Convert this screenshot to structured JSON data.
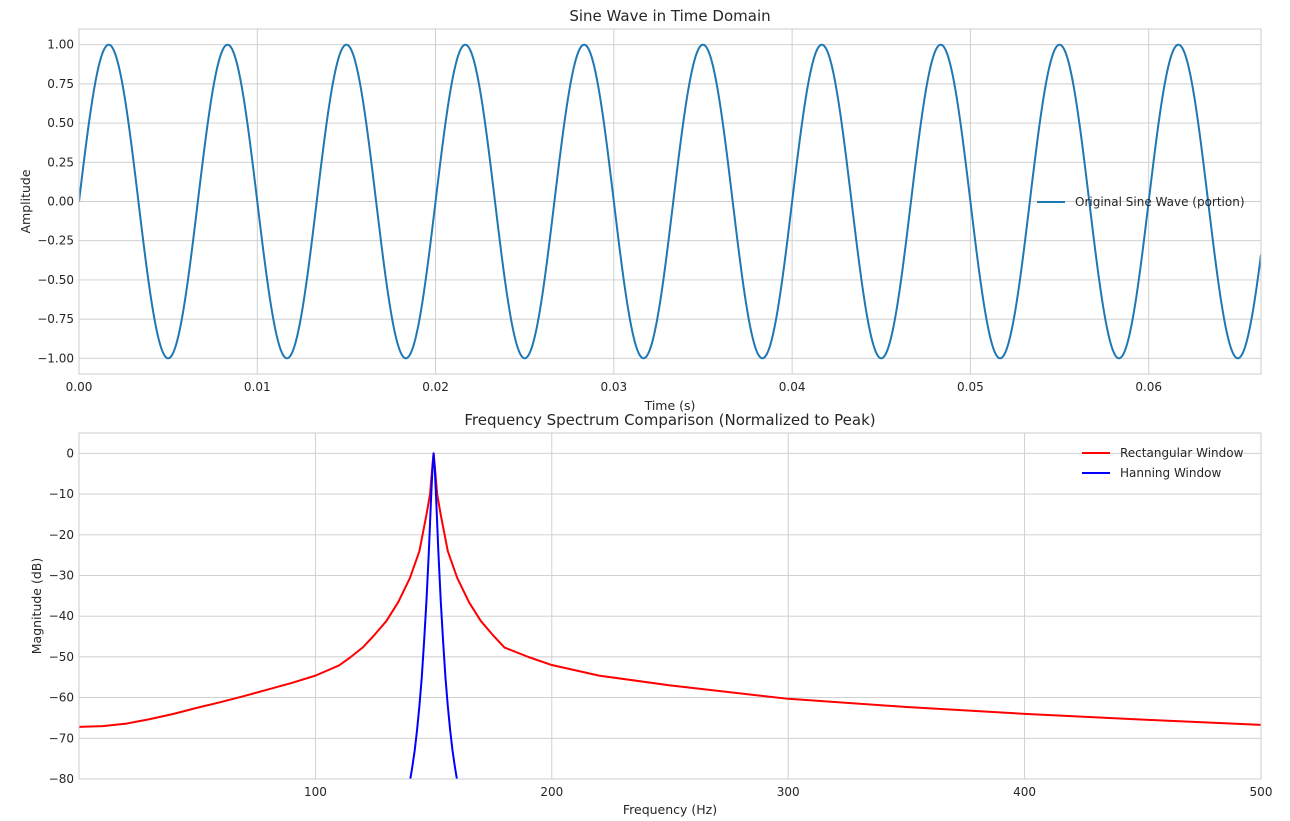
{
  "chart_data": [
    {
      "type": "line",
      "title": "Sine Wave in Time Domain",
      "xlabel": "Time (s)",
      "ylabel": "Amplitude",
      "xlim": [
        0,
        0.0663
      ],
      "ylim": [
        -1.1,
        1.1
      ],
      "xticks": [
        0.0,
        0.01,
        0.02,
        0.03,
        0.04,
        0.05,
        0.06
      ],
      "xtick_labels": [
        "0.00",
        "0.01",
        "0.02",
        "0.03",
        "0.04",
        "0.05",
        "0.06"
      ],
      "yticks": [
        1.0,
        0.75,
        0.5,
        0.25,
        0.0,
        -0.25,
        -0.5,
        -0.75,
        -1.0
      ],
      "ytick_labels": [
        "1.00",
        "0.75",
        "0.50",
        "0.25",
        "0.00",
        "−0.25",
        "−0.50",
        "−0.75",
        "−1.00"
      ],
      "grid": true,
      "legend_position": "center-right",
      "series": [
        {
          "name": "Original Sine Wave (portion)",
          "color": "#1f77b4",
          "function": "sine",
          "frequency_hz": 150,
          "amplitude": 1.0,
          "x_start": 0,
          "x_end": 0.0663
        }
      ]
    },
    {
      "type": "line",
      "title": "Frequency Spectrum Comparison (Normalized to Peak)",
      "xlabel": "Frequency (Hz)",
      "ylabel": "Magnitude (dB)",
      "xlim": [
        0,
        500
      ],
      "ylim": [
        -80,
        5
      ],
      "xticks": [
        100,
        200,
        300,
        400,
        500
      ],
      "xtick_labels": [
        "100",
        "200",
        "300",
        "400",
        "500"
      ],
      "yticks": [
        0,
        -10,
        -20,
        -30,
        -40,
        -50,
        -60,
        -70,
        -80
      ],
      "ytick_labels": [
        "0",
        "−10",
        "−20",
        "−30",
        "−40",
        "−50",
        "−60",
        "−70",
        "−80"
      ],
      "grid": true,
      "legend_position": "top-right",
      "peak_hz": 150,
      "series": [
        {
          "name": "Rectangular Window",
          "color": "#ff0000",
          "points": [
            [
              0,
              -67.2
            ],
            [
              10,
              -67.0
            ],
            [
              20,
              -66.4
            ],
            [
              30,
              -65.3
            ],
            [
              40,
              -64.0
            ],
            [
              50,
              -62.5
            ],
            [
              60,
              -61.1
            ],
            [
              70,
              -59.6
            ],
            [
              80,
              -58.0
            ],
            [
              90,
              -56.4
            ],
            [
              100,
              -54.6
            ],
            [
              110,
              -52.1
            ],
            [
              115,
              -50.0
            ],
            [
              120,
              -47.7
            ],
            [
              125,
              -44.6
            ],
            [
              130,
              -41.2
            ],
            [
              135,
              -36.6
            ],
            [
              140,
              -30.6
            ],
            [
              144,
              -24.0
            ],
            [
              147,
              -15.0
            ],
            [
              148.5,
              -10.0
            ],
            [
              149.5,
              -3.0
            ],
            [
              150,
              0
            ],
            [
              150.5,
              -3.0
            ],
            [
              151.5,
              -10.0
            ],
            [
              153,
              -15.0
            ],
            [
              156,
              -24.0
            ],
            [
              160,
              -30.6
            ],
            [
              165,
              -36.6
            ],
            [
              170,
              -41.2
            ],
            [
              175,
              -44.6
            ],
            [
              180,
              -47.7
            ],
            [
              190,
              -50.0
            ],
            [
              200,
              -52.0
            ],
            [
              220,
              -54.6
            ],
            [
              250,
              -57.0
            ],
            [
              300,
              -60.3
            ],
            [
              350,
              -62.3
            ],
            [
              400,
              -64.0
            ],
            [
              450,
              -65.4
            ],
            [
              500,
              -66.7
            ]
          ]
        },
        {
          "name": "Hanning Window",
          "color": "#0000ff",
          "points": [
            [
              140,
              -80.5
            ],
            [
              141,
              -77.0
            ],
            [
              142,
              -73.0
            ],
            [
              143,
              -68.0
            ],
            [
              144,
              -62.0
            ],
            [
              145,
              -55.0
            ],
            [
              146,
              -46.0
            ],
            [
              147,
              -36.0
            ],
            [
              148,
              -24.0
            ],
            [
              149,
              -10.0
            ],
            [
              149.5,
              -4.0
            ],
            [
              150,
              0
            ],
            [
              150.5,
              -4.0
            ],
            [
              151,
              -10.0
            ],
            [
              152,
              -24.0
            ],
            [
              153,
              -36.0
            ],
            [
              154,
              -46.0
            ],
            [
              155,
              -55.0
            ],
            [
              156,
              -62.0
            ],
            [
              157,
              -68.0
            ],
            [
              158,
              -73.0
            ],
            [
              159,
              -77.0
            ],
            [
              160,
              -80.5
            ]
          ]
        }
      ]
    }
  ]
}
